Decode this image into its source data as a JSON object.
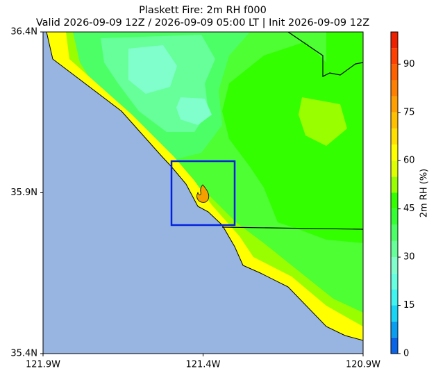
{
  "chart_data": {
    "type": "map",
    "title": "Plaskett Fire: 2m RH f000",
    "subtitle": "Valid 2026-09-09 12Z / 2026-09-09 05:00 LT | Init 2026-09-09 12Z",
    "xlim": [
      -121.9,
      -120.9
    ],
    "xticks": [
      {
        "value": -121.9,
        "label": "121.9W"
      },
      {
        "value": -121.4,
        "label": "121.4W"
      },
      {
        "value": -120.9,
        "label": "120.9W"
      }
    ],
    "ylim": [
      35.4,
      36.4
    ],
    "yticks": [
      {
        "value": 35.4,
        "label": "35.4N"
      },
      {
        "value": 35.9,
        "label": "35.9N"
      },
      {
        "value": 36.4,
        "label": "36.4N"
      }
    ],
    "colorbar": {
      "label": "2m RH (%)",
      "lim": [
        0,
        100
      ],
      "ticks": [
        0,
        15,
        30,
        45,
        60,
        75,
        90
      ],
      "levels": [
        0,
        5,
        10,
        15,
        20,
        25,
        30,
        35,
        40,
        45,
        50,
        55,
        60,
        65,
        70,
        75,
        80,
        85,
        90,
        95,
        100
      ],
      "colors": [
        "#0a64e8",
        "#0a9ef0",
        "#18d4f5",
        "#40f5f0",
        "#66ffe0",
        "#80ffcc",
        "#66ff99",
        "#4dff66",
        "#33ff33",
        "#33ff00",
        "#99ff00",
        "#ddff00",
        "#ffff00",
        "#ffe000",
        "#ffc000",
        "#ffa000",
        "#ff8000",
        "#ff6000",
        "#ff4000",
        "#ee2000"
      ]
    }
  }
}
